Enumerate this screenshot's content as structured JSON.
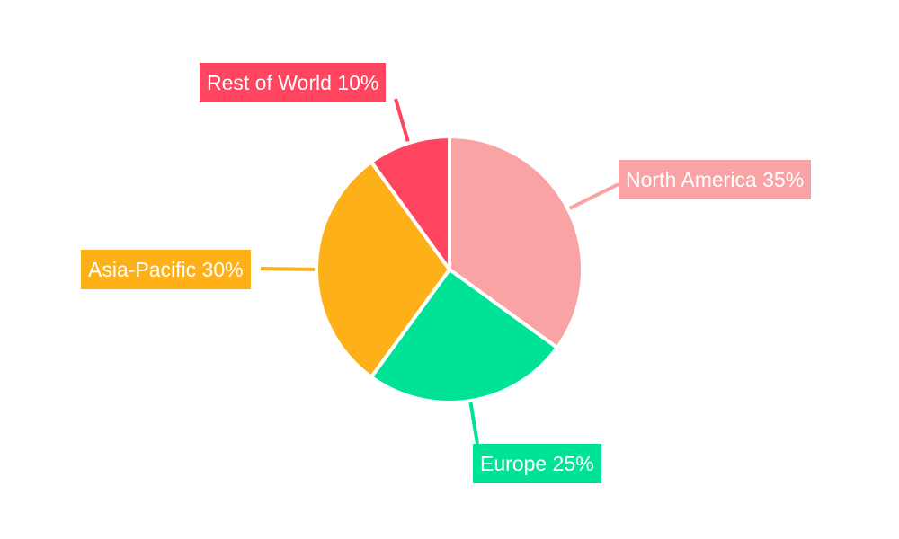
{
  "chart_data": {
    "type": "pie",
    "categories": [
      "North America",
      "Europe",
      "Asia-Pacific",
      "Rest of World"
    ],
    "values": [
      35,
      25,
      30,
      10
    ],
    "unit": "%",
    "colors": [
      "#f9a3a4",
      "#00e396",
      "#feb019",
      "#ff4560"
    ],
    "start_angle": "top",
    "direction": "clockwise",
    "legend": "none",
    "data_labels": "outside-with-leader-lines"
  }
}
